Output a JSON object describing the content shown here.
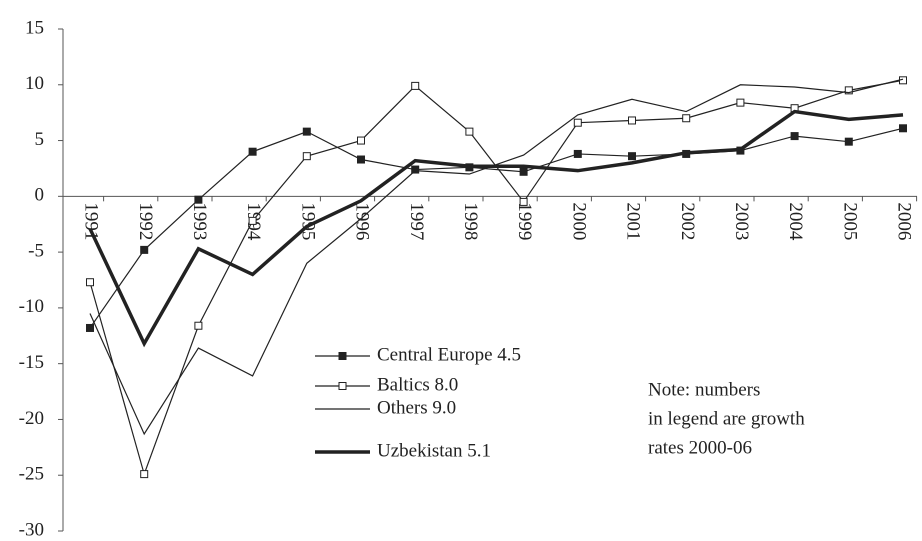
{
  "chart_data": {
    "type": "line",
    "categories": [
      "1991",
      "1992",
      "1993",
      "1994",
      "1995",
      "1996",
      "1997",
      "1998",
      "1999",
      "2000",
      "2001",
      "2002",
      "2003",
      "2004",
      "2005",
      "2006"
    ],
    "series": [
      {
        "name": "Central Europe 4.5",
        "color": "#222222",
        "marker": "filled-square",
        "width": 1.2,
        "values": [
          -11.8,
          -4.8,
          -0.3,
          4.0,
          5.8,
          3.3,
          2.4,
          2.6,
          2.2,
          3.8,
          3.6,
          3.8,
          4.1,
          5.4,
          4.9,
          6.1
        ]
      },
      {
        "name": "Baltics 8.0",
        "color": "#222222",
        "marker": "open-square",
        "width": 1.2,
        "values": [
          -7.7,
          -24.9,
          -11.6,
          -2.2,
          3.6,
          5.0,
          9.9,
          5.8,
          -0.5,
          6.6,
          6.8,
          7.0,
          8.4,
          7.9,
          9.5,
          10.4
        ]
      },
      {
        "name": "Others 9.0",
        "color": "#222222",
        "marker": "none",
        "width": 1.2,
        "values": [
          -10.5,
          -21.3,
          -13.6,
          -16.1,
          -6.0,
          -2.0,
          2.3,
          2.0,
          3.7,
          7.3,
          8.7,
          7.6,
          10.0,
          9.8,
          9.3,
          10.5
        ]
      },
      {
        "name": "Uzbekistan 5.1",
        "color": "#222222",
        "marker": "none",
        "width": 3.5,
        "values": [
          -2.9,
          -13.2,
          -4.7,
          -7.0,
          -2.7,
          -0.4,
          3.2,
          2.7,
          2.7,
          2.3,
          3.0,
          3.9,
          4.2,
          7.6,
          6.9,
          7.3
        ]
      }
    ],
    "ylim": [
      -30,
      15
    ],
    "yticks": [
      -30,
      -25,
      -20,
      -15,
      -10,
      -5,
      0,
      5,
      10,
      15
    ],
    "annotation": [
      "Note: numbers",
      "in legend are growth",
      "rates 2000-06"
    ],
    "grid": false
  }
}
